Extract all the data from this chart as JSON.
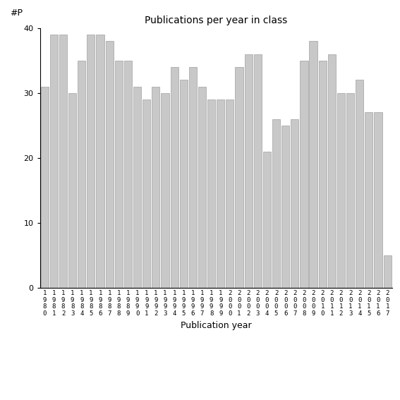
{
  "title": "Publications per year in class",
  "xlabel": "Publication year",
  "ylabel": "#P",
  "start_year": 1980,
  "end_year": 2017,
  "values": [
    31,
    39,
    39,
    30,
    35,
    39,
    39,
    38,
    35,
    35,
    31,
    29,
    31,
    30,
    34,
    32,
    34,
    31,
    29,
    29,
    29,
    34,
    36,
    36,
    21,
    26,
    25,
    26,
    35,
    38,
    35,
    36,
    30,
    30,
    32,
    27,
    27,
    5
  ],
  "bar_color": "#c8c8c8",
  "bar_edgecolor": "#a0a0a0",
  "ylim": [
    0,
    40
  ],
  "yticks": [
    0,
    10,
    20,
    30,
    40
  ],
  "background_color": "#ffffff",
  "title_fontsize": 10,
  "axis_label_fontsize": 9,
  "tick_fontsize": 8
}
